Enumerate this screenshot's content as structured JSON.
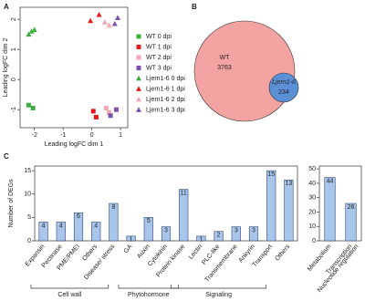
{
  "chart_data": [
    {
      "type": "scatter",
      "panel": "A",
      "xlabel": "Leading logFC dim 1",
      "ylabel": "Leading logFC dim 2",
      "xlim": [
        -2.5,
        1.25
      ],
      "ylim": [
        -1.6,
        2.4
      ],
      "xticks": [
        -2,
        -1,
        0,
        1
      ],
      "yticks": [
        -1,
        0,
        1,
        2
      ],
      "series": [
        {
          "name": "WT 0 dpi",
          "marker": "square",
          "color": "#3cb043",
          "x": [
            -2.2,
            -2.05
          ],
          "y": [
            -0.85,
            -0.95
          ]
        },
        {
          "name": "WT 1 dpi",
          "marker": "square",
          "color": "#e41a1c",
          "x": [
            0.05,
            0.15
          ],
          "y": [
            -1.05,
            -1.25
          ]
        },
        {
          "name": "WT 2 dpi",
          "marker": "square",
          "color": "#f4a6b5",
          "x": [
            0.5,
            0.6
          ],
          "y": [
            -0.95,
            -1.1
          ]
        },
        {
          "name": "WT 3 dpi",
          "marker": "square",
          "color": "#7b52ae",
          "x": [
            0.65,
            0.85
          ],
          "y": [
            -1.2,
            -1.0
          ]
        },
        {
          "name": "Ljern1-6 0 dpi",
          "marker": "triangle",
          "color": "#3cb043",
          "x": [
            -2.2,
            -2.1,
            -2.0
          ],
          "y": [
            1.5,
            1.6,
            1.65
          ]
        },
        {
          "name": "Ljern1-6 1 dpi",
          "marker": "triangle",
          "color": "#e41a1c",
          "x": [
            -0.05,
            0.25
          ],
          "y": [
            1.95,
            2.15
          ]
        },
        {
          "name": "Ljern1-6 2 dpi",
          "marker": "triangle",
          "color": "#f4a6b5",
          "x": [
            0.45,
            0.6
          ],
          "y": [
            1.9,
            1.8
          ]
        },
        {
          "name": "Ljern1-6 3 dpi",
          "marker": "triangle",
          "color": "#7b52ae",
          "x": [
            0.8,
            0.9
          ],
          "y": [
            1.85,
            2.05
          ]
        }
      ]
    },
    {
      "type": "venn",
      "panel": "B",
      "sets": [
        {
          "name": "WT",
          "value": 3763,
          "color": "#f4a3a3"
        },
        {
          "name": "Ljern1-6",
          "value": 234,
          "color": "#5b8fd6"
        }
      ]
    },
    {
      "type": "bar",
      "panel": "C",
      "ylabel": "Number of DEGs",
      "color": "#a9c6ea",
      "edge": "#2c4a7a",
      "categories": [
        "Expansin",
        "Pectinase",
        "PME/PMEI",
        "Others",
        "Disease/ stress",
        "GA",
        "Auxin",
        "Cytokinin",
        "Protein kinase",
        "Lectin",
        "PLC-like",
        "Transmembrane",
        "Ankyrin",
        "Transport",
        "Others"
      ],
      "values": [
        4,
        4,
        6,
        4,
        8,
        1,
        5,
        3,
        11,
        1,
        2,
        3,
        3,
        15,
        13
      ],
      "ylim": [
        0,
        16
      ],
      "yticks": [
        0,
        5,
        10,
        15
      ],
      "groups": [
        "Cell wall",
        "Phytohormone",
        "Signaling"
      ]
    },
    {
      "type": "bar",
      "color": "#a9c6ea",
      "edge": "#2c4a7a",
      "categories": [
        "Metabolism",
        [
          "Transcription",
          "Nucleotide regulation"
        ]
      ],
      "values": [
        44,
        26
      ],
      "ylim": [
        0,
        52
      ],
      "yticks": [
        0,
        10,
        20,
        30,
        40,
        50
      ]
    }
  ]
}
